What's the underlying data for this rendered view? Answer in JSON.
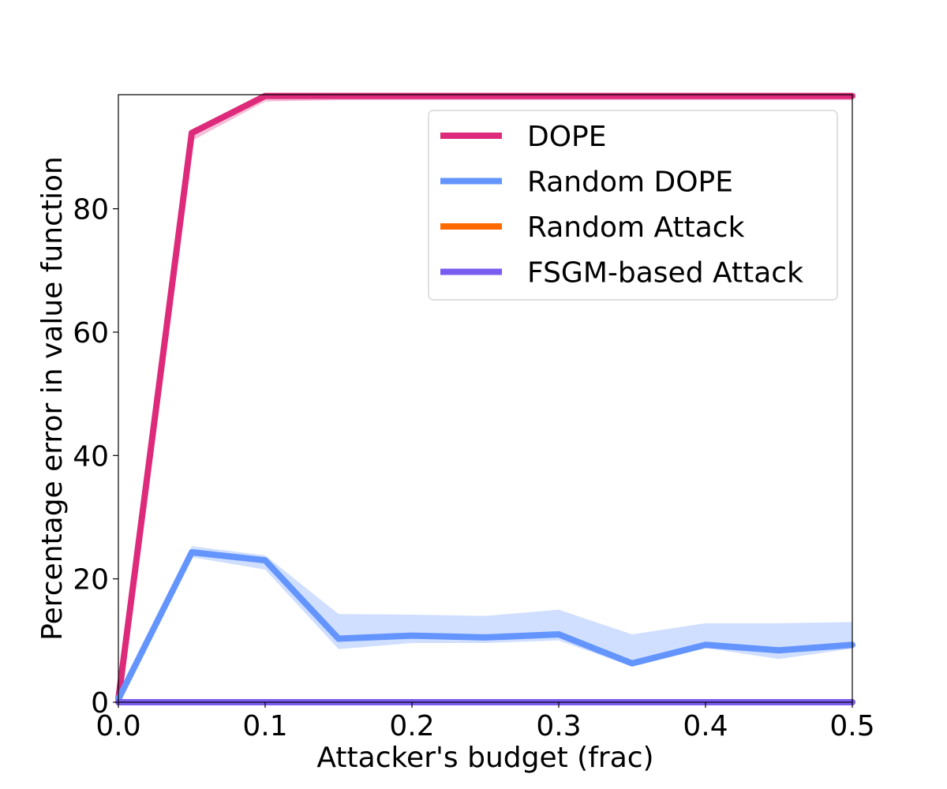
{
  "chart_data": {
    "type": "line",
    "title": "",
    "xlabel": "Attacker's budget (frac)",
    "ylabel": "Percentage error in value function",
    "xlim": [
      0.0,
      0.5
    ],
    "ylim": [
      0,
      98.5
    ],
    "xticks": [
      "0.0",
      "0.1",
      "0.2",
      "0.3",
      "0.4",
      "0.5"
    ],
    "yticks": [
      "0",
      "20",
      "40",
      "60",
      "80"
    ],
    "grid": false,
    "legend_position": "top-right",
    "x": [
      0.0,
      0.05,
      0.1,
      0.15,
      0.2,
      0.25,
      0.3,
      0.35,
      0.4,
      0.45,
      0.5
    ],
    "series": [
      {
        "name": "DOPE",
        "color": "#dd2a7b",
        "values": [
          0.5,
          92.3,
          98.3,
          98.3,
          98.3,
          98.3,
          98.3,
          98.3,
          98.3,
          98.3,
          98.3
        ],
        "lower": [
          0.5,
          91.0,
          97.4,
          97.6,
          97.6,
          97.6,
          97.6,
          97.6,
          97.6,
          97.6,
          97.6
        ],
        "upper": [
          0.5,
          92.8,
          98.5,
          98.5,
          98.5,
          98.5,
          98.5,
          98.5,
          98.5,
          98.5,
          98.5
        ]
      },
      {
        "name": "Random DOPE",
        "color": "#6495ff",
        "values": [
          0.5,
          24.3,
          23.0,
          10.3,
          10.8,
          10.5,
          11.0,
          6.3,
          9.3,
          8.4,
          9.3
        ],
        "lower": [
          0.5,
          23.5,
          21.5,
          8.6,
          9.6,
          9.6,
          10.0,
          5.8,
          8.8,
          7.0,
          8.7
        ],
        "upper": [
          0.5,
          25.3,
          23.8,
          14.3,
          14.2,
          14.0,
          15.0,
          11.0,
          12.8,
          12.8,
          13.0
        ]
      },
      {
        "name": "Random Attack",
        "color": "#ff6a00",
        "values": [
          0,
          0,
          0,
          0,
          0,
          0,
          0,
          0,
          0,
          0,
          0
        ]
      },
      {
        "name": "FSGM-based Attack",
        "color": "#7b5cf0",
        "values": [
          0,
          0,
          0,
          0,
          0,
          0,
          0,
          0,
          0,
          0,
          0
        ]
      }
    ]
  }
}
